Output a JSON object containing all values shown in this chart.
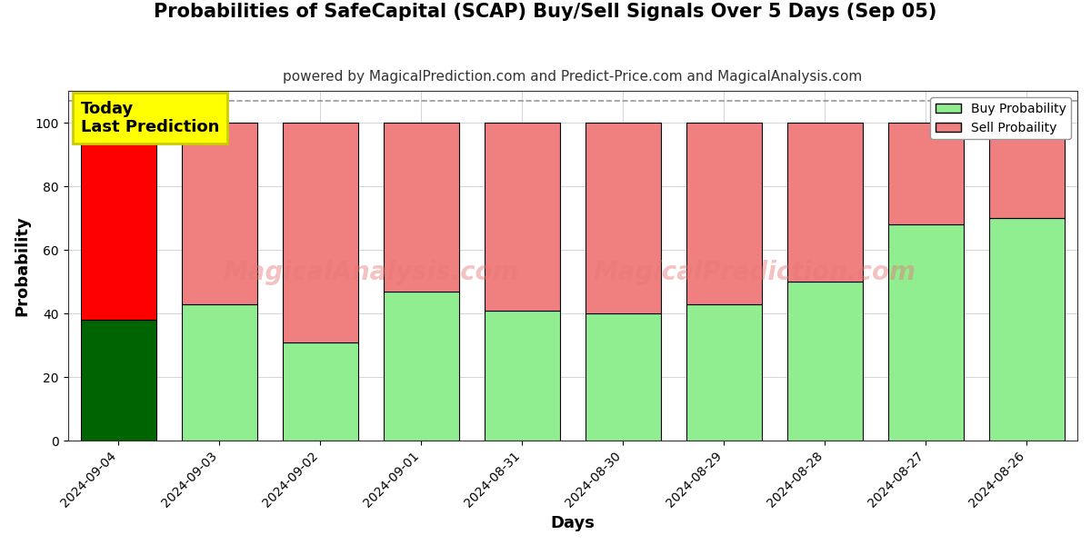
{
  "title": "Probabilities of SafeCapital (SCAP) Buy/Sell Signals Over 5 Days (Sep 05)",
  "subtitle": "powered by MagicalPrediction.com and Predict-Price.com and MagicalAnalysis.com",
  "xlabel": "Days",
  "ylabel": "Probability",
  "dates": [
    "2024-09-04",
    "2024-09-03",
    "2024-09-02",
    "2024-09-01",
    "2024-08-31",
    "2024-08-30",
    "2024-08-29",
    "2024-08-28",
    "2024-08-27",
    "2024-08-26"
  ],
  "buy_values": [
    38,
    43,
    31,
    47,
    41,
    40,
    43,
    50,
    68,
    70
  ],
  "sell_values": [
    62,
    57,
    69,
    53,
    59,
    60,
    57,
    50,
    32,
    30
  ],
  "today_index": 0,
  "buy_color_today": "#006400",
  "sell_color_today": "#ff0000",
  "buy_color_normal": "#90EE90",
  "sell_color_normal": "#f08080",
  "bar_edge_color": "#000000",
  "bar_edge_width": 0.8,
  "annotation_text": "Today\nLast Prediction",
  "annotation_bg": "#ffff00",
  "annotation_fontsize": 13,
  "ylim": [
    0,
    110
  ],
  "yticks": [
    0,
    20,
    40,
    60,
    80,
    100
  ],
  "dashed_line_y": 107,
  "grid_color": "#aaaaaa",
  "title_fontsize": 15,
  "subtitle_fontsize": 11,
  "axis_label_fontsize": 13,
  "tick_fontsize": 10,
  "legend_labels": [
    "Buy Probability",
    "Sell Probaility"
  ],
  "background_color": "#ffffff",
  "bar_width": 0.75
}
